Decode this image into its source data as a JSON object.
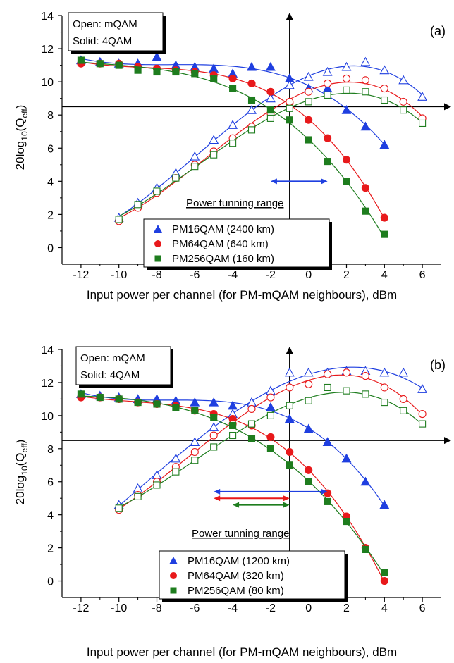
{
  "chart_data": [
    {
      "type": "scatter",
      "panel_label": "(a)",
      "xlabel": "Input power per channel (for PM-mQAM neighbours), dBm",
      "ylabel_main": "20log",
      "ylabel_sub": "10",
      "ylabel_q": "(Q",
      "ylabel_qsub": "eff",
      "ylabel_end": ")",
      "xlim": [
        -13,
        7
      ],
      "ylim": [
        -1,
        14
      ],
      "xticks": [
        -12,
        -10,
        -8,
        -6,
        -4,
        -2,
        0,
        2,
        4,
        6
      ],
      "yticks": [
        0,
        2,
        4,
        6,
        8,
        10,
        12,
        14
      ],
      "hline_y": 8.5,
      "vline_x": -1,
      "info_box": {
        "line1": "Open: mQAM",
        "line2": "Solid: 4QAM"
      },
      "range_label": "Power tunning range",
      "range_arrows": [
        {
          "color": "#1f3fe0",
          "from": -2,
          "to": 1,
          "y": 4.0
        }
      ],
      "series": [
        {
          "name": "PM16QAM (2400 km)",
          "color": "#1f3fe0",
          "marker": "triangle",
          "solid_x": [
            -12,
            -11,
            -10,
            -9,
            -8,
            -7,
            -6,
            -5,
            -4,
            -3,
            -2,
            -1,
            0,
            1,
            2,
            3,
            4
          ],
          "solid_y": [
            11.3,
            11.2,
            11.1,
            11.1,
            11.5,
            11.0,
            10.9,
            10.8,
            10.5,
            10.9,
            10.9,
            10.2,
            9.6,
            9.6,
            8.3,
            7.3,
            6.2
          ],
          "open_x": [
            -10,
            -9,
            -8,
            -7,
            -6,
            -5,
            -4,
            -3,
            -2,
            -1,
            0,
            1,
            2,
            3,
            4,
            5,
            6
          ],
          "open_y": [
            1.8,
            2.7,
            3.6,
            4.5,
            5.5,
            6.5,
            7.4,
            8.3,
            9.0,
            9.8,
            10.3,
            10.6,
            10.9,
            11.2,
            10.7,
            10.1,
            9.1
          ]
        },
        {
          "name": "PM64QAM (640 km)",
          "color": "#e8191b",
          "marker": "circle",
          "solid_x": [
            -12,
            -11,
            -10,
            -9,
            -8,
            -7,
            -6,
            -5,
            -4,
            -3,
            -2,
            -1,
            0,
            1,
            2,
            3,
            4
          ],
          "solid_y": [
            11.1,
            11.1,
            11.1,
            10.9,
            10.8,
            10.7,
            10.6,
            10.4,
            10.2,
            9.9,
            9.4,
            8.7,
            7.7,
            6.6,
            5.3,
            3.6,
            1.8
          ],
          "open_x": [
            -10,
            -9,
            -8,
            -7,
            -6,
            -5,
            -4,
            -3,
            -2,
            -1,
            0,
            1,
            2,
            3,
            4,
            5,
            6
          ],
          "open_y": [
            1.6,
            2.4,
            3.3,
            4.2,
            5.0,
            5.8,
            6.6,
            7.3,
            8.1,
            8.8,
            9.4,
            9.9,
            10.2,
            10.1,
            9.6,
            8.8,
            7.8
          ]
        },
        {
          "name": "PM256QAM (160 km)",
          "color": "#1e7d1e",
          "marker": "square",
          "solid_x": [
            -12,
            -11,
            -10,
            -9,
            -8,
            -7,
            -6,
            -5,
            -4,
            -3,
            -2,
            -1,
            0,
            1,
            2,
            3,
            4
          ],
          "solid_y": [
            11.3,
            11.1,
            11.0,
            10.7,
            10.6,
            10.6,
            10.5,
            10.2,
            9.6,
            8.9,
            8.3,
            7.7,
            6.5,
            5.2,
            4.0,
            2.2,
            0.8
          ],
          "open_x": [
            -10,
            -9,
            -8,
            -7,
            -6,
            -5,
            -4,
            -3,
            -2,
            -1,
            0,
            1,
            2,
            3,
            4,
            5,
            6
          ],
          "open_y": [
            1.7,
            2.6,
            3.4,
            4.2,
            4.9,
            5.6,
            6.3,
            7.1,
            7.8,
            8.4,
            8.8,
            9.2,
            9.5,
            9.4,
            8.9,
            8.3,
            7.5
          ]
        }
      ]
    },
    {
      "type": "scatter",
      "panel_label": "(b)",
      "xlabel": "Input power per channel (for PM-mQAM neighbours), dBm",
      "ylabel_main": "20log",
      "ylabel_sub": "10",
      "ylabel_q": "(Q",
      "ylabel_qsub": "eff",
      "ylabel_end": ")",
      "xlim": [
        -13,
        7
      ],
      "ylim": [
        -1,
        14
      ],
      "xticks": [
        -12,
        -10,
        -8,
        -6,
        -4,
        -2,
        0,
        2,
        4,
        6
      ],
      "yticks": [
        0,
        2,
        4,
        6,
        8,
        10,
        12,
        14
      ],
      "hline_y": 8.5,
      "vline_x": -1,
      "info_box": {
        "line1": "Open: mQAM",
        "line2": "Solid: 4QAM"
      },
      "range_label": "Power tunning range",
      "range_arrows": [
        {
          "color": "#1f3fe0",
          "from": -5,
          "to": 1,
          "y": 5.4
        },
        {
          "color": "#e8191b",
          "from": -5,
          "to": -1,
          "y": 5.0
        },
        {
          "color": "#1e7d1e",
          "from": -4,
          "to": -1,
          "y": 4.6
        }
      ],
      "series": [
        {
          "name": "PM16QAM (1200 km)",
          "color": "#1f3fe0",
          "marker": "triangle",
          "solid_x": [
            -12,
            -11,
            -10,
            -9,
            -8,
            -7,
            -6,
            -5,
            -4,
            -3,
            -2,
            -1,
            0,
            1,
            2,
            3,
            4
          ],
          "solid_y": [
            11.3,
            11.2,
            11.1,
            11.0,
            11.0,
            10.9,
            10.8,
            10.8,
            10.6,
            10.8,
            10.5,
            9.8,
            9.2,
            8.4,
            7.4,
            6.0,
            4.6
          ],
          "open_x": [
            -10,
            -9,
            -8,
            -7,
            -6,
            -5,
            -4,
            -3,
            -2,
            -1,
            0,
            1,
            2,
            3,
            4,
            5,
            6
          ],
          "open_y": [
            4.6,
            5.6,
            6.4,
            7.4,
            8.4,
            9.3,
            10.1,
            10.8,
            11.5,
            12.6,
            12.6,
            12.6,
            12.7,
            12.7,
            12.6,
            12.6,
            11.6
          ]
        },
        {
          "name": "PM64QAM (320 km)",
          "color": "#e8191b",
          "marker": "circle",
          "solid_x": [
            -12,
            -11,
            -10,
            -9,
            -8,
            -7,
            -6,
            -5,
            -4,
            -3,
            -2,
            -1,
            0,
            1,
            2,
            3,
            4
          ],
          "solid_y": [
            11.1,
            11.1,
            11.0,
            10.8,
            10.7,
            10.6,
            10.3,
            10.1,
            9.8,
            9.4,
            8.7,
            7.8,
            6.7,
            5.3,
            3.9,
            2.0,
            0.0
          ],
          "open_x": [
            -10,
            -9,
            -8,
            -7,
            -6,
            -5,
            -4,
            -3,
            -2,
            -1,
            0,
            1,
            2,
            3,
            4,
            5,
            6
          ],
          "open_y": [
            4.3,
            5.2,
            6.0,
            6.9,
            7.8,
            8.8,
            9.5,
            10.4,
            11.1,
            11.7,
            11.9,
            12.5,
            12.6,
            12.4,
            11.7,
            11.0,
            10.1
          ]
        },
        {
          "name": "PM256QAM (80 km)",
          "color": "#1e7d1e",
          "marker": "square",
          "solid_x": [
            -12,
            -11,
            -10,
            -9,
            -8,
            -7,
            -6,
            -5,
            -4,
            -3,
            -2,
            -1,
            0,
            1,
            2,
            3,
            4
          ],
          "solid_y": [
            11.3,
            11.1,
            11.0,
            10.8,
            10.7,
            10.5,
            10.3,
            9.9,
            9.4,
            8.6,
            8.0,
            7.0,
            6.0,
            4.8,
            3.6,
            1.9,
            0.5
          ],
          "open_x": [
            -10,
            -9,
            -8,
            -7,
            -6,
            -5,
            -4,
            -3,
            -2,
            -1,
            0,
            1,
            2,
            3,
            4,
            5,
            6
          ],
          "open_y": [
            4.4,
            5.1,
            5.8,
            6.6,
            7.3,
            8.1,
            8.8,
            9.5,
            10.0,
            10.6,
            10.9,
            11.7,
            11.5,
            11.3,
            10.8,
            10.3,
            9.5
          ]
        }
      ]
    }
  ]
}
